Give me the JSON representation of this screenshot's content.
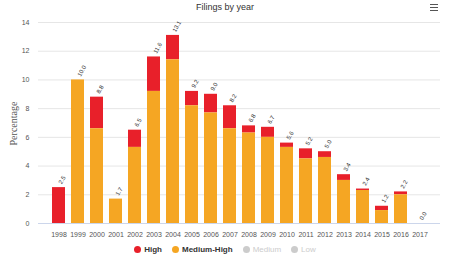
{
  "chart_data": {
    "type": "bar",
    "title": "Filings by year",
    "y_label": "Percentage",
    "categories": [
      "1998",
      "1999",
      "2000",
      "2001",
      "2002",
      "2003",
      "2004",
      "2005",
      "2006",
      "2007",
      "2008",
      "2009",
      "2010",
      "2011",
      "2012",
      "2013",
      "2014",
      "2015",
      "2016",
      "2017"
    ],
    "series": [
      {
        "name": "High",
        "color": "#e8202a",
        "values": [
          2.5,
          0,
          2.2,
          0,
          1.2,
          2.4,
          1.7,
          1.0,
          1.3,
          1.6,
          0.5,
          0.7,
          0.3,
          0.7,
          0.4,
          0.4,
          0.1,
          0.3,
          0.2,
          0
        ]
      },
      {
        "name": "Medium-High",
        "color": "#f5a623",
        "values": [
          0,
          10.0,
          6.6,
          1.7,
          5.3,
          9.2,
          11.4,
          8.2,
          7.7,
          6.6,
          6.3,
          6.0,
          5.3,
          4.5,
          4.6,
          3.0,
          2.3,
          0.9,
          2.0,
          0
        ]
      },
      {
        "name": "Medium",
        "color": "#cccccc",
        "values": [
          0,
          0,
          0,
          0,
          0,
          0,
          0,
          0,
          0,
          0,
          0,
          0,
          0,
          0,
          0,
          0,
          0,
          0,
          0,
          0
        ]
      },
      {
        "name": "Low",
        "color": "#cccccc",
        "values": [
          0,
          0,
          0,
          0,
          0,
          0,
          0,
          0,
          0,
          0,
          0,
          0,
          0,
          0,
          0,
          0,
          0,
          0,
          0,
          0
        ]
      }
    ],
    "totals": [
      2.5,
      10.0,
      8.8,
      1.7,
      6.5,
      11.6,
      13.1,
      9.2,
      9.0,
      8.2,
      6.8,
      6.7,
      5.6,
      5.2,
      5.0,
      3.4,
      2.4,
      1.2,
      2.2,
      0.0
    ],
    "total_labels": [
      "2.5",
      "10.0",
      "8.8",
      "1.7",
      "6.5",
      "11.6",
      "13.1",
      "9.2",
      "9.0",
      "8.2",
      "6.8",
      "6.7",
      "5.6",
      "5.2",
      "5.0",
      "3.4",
      "2.4",
      "1.2",
      "2.2",
      "0.0"
    ],
    "stacked": true,
    "ylim": [
      0,
      14
    ],
    "yticks": [
      0,
      2,
      4,
      6,
      8,
      10,
      12,
      14
    ],
    "grid": true,
    "legend": "bottom"
  }
}
